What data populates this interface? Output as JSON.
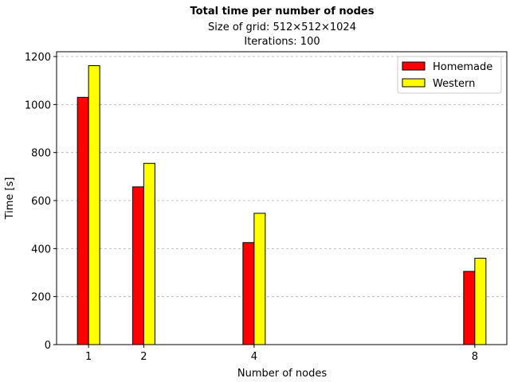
{
  "chart_data": {
    "type": "bar",
    "title": "Total time per number of nodes",
    "subtitle_lines": [
      "Size of grid: 512×512×1024",
      "Iterations: 100"
    ],
    "xlabel": "Number of nodes",
    "ylabel": "Time [s]",
    "x": [
      1,
      2,
      4,
      8
    ],
    "x_tick_labels": [
      "1",
      "2",
      "4",
      "8"
    ],
    "xlim": [
      0.42,
      8.58
    ],
    "ylim": [
      0,
      1220
    ],
    "y_ticks": [
      0,
      200,
      400,
      600,
      800,
      1000,
      1200
    ],
    "grid": "horizontal dashed",
    "legend_position": "top-right",
    "series": [
      {
        "name": "Homemade",
        "color": "#ff0000",
        "values": [
          1030,
          657,
          425,
          305
        ]
      },
      {
        "name": "Western",
        "color": "#ffff00",
        "values": [
          1162,
          755,
          547,
          360
        ]
      }
    ]
  }
}
